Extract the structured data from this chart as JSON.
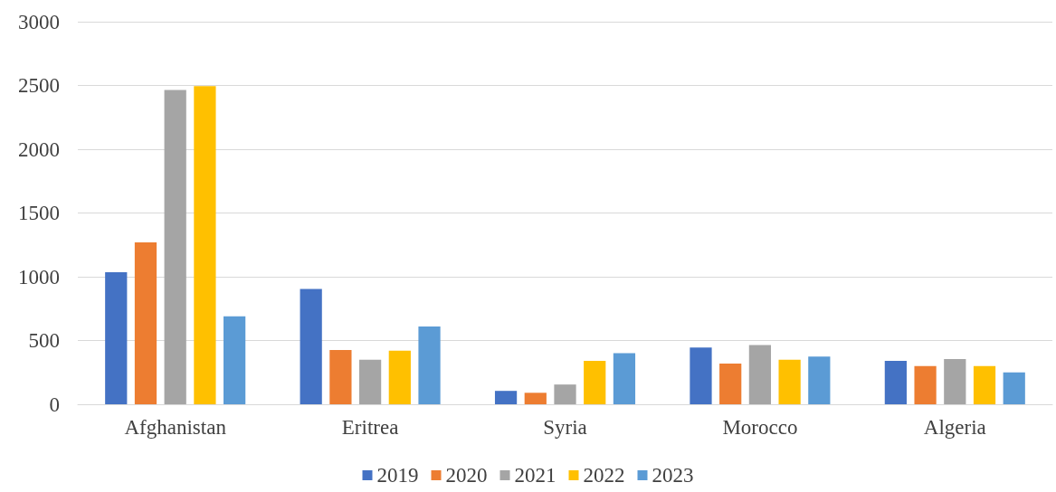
{
  "chart_data": {
    "type": "bar",
    "categories": [
      "Afghanistan",
      "Eritrea",
      "Syria",
      "Morocco",
      "Algeria"
    ],
    "series": [
      {
        "name": "2019",
        "color": "#4472c4",
        "values": [
          1035,
          905,
          105,
          445,
          340
        ]
      },
      {
        "name": "2020",
        "color": "#ed7d31",
        "values": [
          1270,
          425,
          90,
          320,
          300
        ]
      },
      {
        "name": "2021",
        "color": "#a5a5a5",
        "values": [
          2465,
          350,
          155,
          465,
          355
        ]
      },
      {
        "name": "2022",
        "color": "#ffc000",
        "values": [
          2495,
          420,
          340,
          350,
          300
        ]
      },
      {
        "name": "2023",
        "color": "#5b9bd5",
        "values": [
          690,
          610,
          400,
          375,
          250
        ]
      }
    ],
    "ylim": [
      0,
      3000
    ],
    "yticks": [
      0,
      500,
      1000,
      1500,
      2000,
      2500,
      3000
    ],
    "grid": "y",
    "legend": "bottom"
  }
}
